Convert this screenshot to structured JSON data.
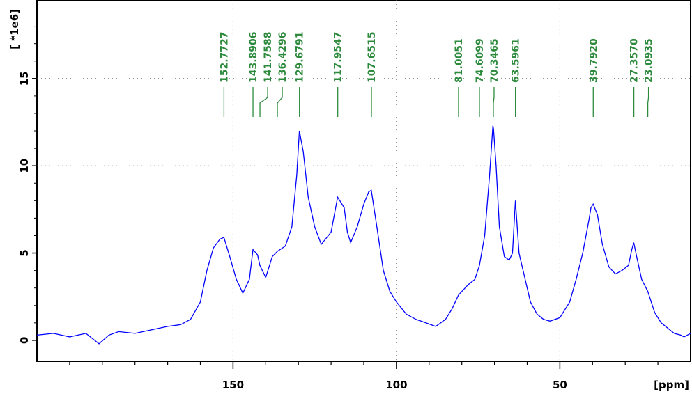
{
  "chart_data": {
    "type": "line",
    "title": "",
    "xlabel": "[ppm]",
    "ylabel": "[ *1e6]",
    "xlim": [
      210,
      10
    ],
    "ylim": [
      -1.2,
      19.5
    ],
    "x_ticks": [
      {
        "value": 150,
        "label": "150"
      },
      {
        "value": 100,
        "label": "100"
      },
      {
        "value": 50,
        "label": "50"
      }
    ],
    "x_minor_ticks": [
      200,
      190,
      180,
      170,
      160,
      140,
      130,
      120,
      110,
      90,
      80,
      70,
      60,
      40,
      30,
      20
    ],
    "y_ticks": [
      {
        "value": 0,
        "label": "0"
      },
      {
        "value": 5,
        "label": "5"
      },
      {
        "value": 10,
        "label": "10"
      },
      {
        "value": 15,
        "label": "15"
      }
    ],
    "grid": true,
    "line_color": "#0000ff",
    "peak_label_color": "#2e8b3e",
    "series": [
      {
        "x": [
          210,
          205,
          200,
          195,
          191,
          188,
          185,
          180,
          175,
          170,
          166,
          163,
          160,
          158,
          156,
          154,
          152.8,
          151,
          149,
          147,
          145,
          143.9,
          142.5,
          141.8,
          140,
          138,
          136.4,
          134,
          132,
          130.5,
          129.7,
          128.5,
          127,
          125,
          123,
          120,
          118,
          116,
          115,
          114,
          112,
          110,
          108.5,
          107.7,
          106,
          104,
          102,
          100,
          97,
          94,
          91,
          88,
          85,
          83,
          81,
          78,
          76,
          74.6,
          73,
          71.5,
          70.5,
          70.3,
          69.5,
          68.5,
          67,
          65.5,
          64.5,
          63.6,
          62.5,
          61,
          59,
          57,
          55,
          53,
          50,
          47,
          45,
          43,
          41,
          40.5,
          39.8,
          38.5,
          37,
          35,
          33,
          31,
          29,
          28,
          27.4,
          26.5,
          25,
          23.1,
          21,
          19,
          17,
          15,
          13,
          12,
          10
        ],
        "y": [
          0.3,
          0.4,
          0.2,
          0.4,
          -0.2,
          0.3,
          0.5,
          0.4,
          0.6,
          0.8,
          0.9,
          1.2,
          2.2,
          4.0,
          5.3,
          5.8,
          5.9,
          4.8,
          3.5,
          2.7,
          3.5,
          5.2,
          4.9,
          4.3,
          3.6,
          4.8,
          5.1,
          5.4,
          6.5,
          9.5,
          12.0,
          10.8,
          8.2,
          6.5,
          5.5,
          6.2,
          8.2,
          7.6,
          6.2,
          5.6,
          6.5,
          7.8,
          8.5,
          8.6,
          6.5,
          4.0,
          2.8,
          2.2,
          1.5,
          1.2,
          1.0,
          0.8,
          1.2,
          1.8,
          2.6,
          3.2,
          3.5,
          4.3,
          6.0,
          9.5,
          12.3,
          12.1,
          10.0,
          6.5,
          4.8,
          4.6,
          5.0,
          8.0,
          5.0,
          3.8,
          2.2,
          1.5,
          1.2,
          1.1,
          1.3,
          2.2,
          3.5,
          5.0,
          7.0,
          7.6,
          7.8,
          7.2,
          5.5,
          4.2,
          3.8,
          4.0,
          4.3,
          5.2,
          5.6,
          4.8,
          3.5,
          2.8,
          1.6,
          1.0,
          0.7,
          0.4,
          0.3,
          0.2,
          0.4
        ]
      }
    ],
    "peaks": [
      {
        "x": 152.7727,
        "label": "152.7727"
      },
      {
        "x": 143.8906,
        "label": "143.8906"
      },
      {
        "x": 141.7588,
        "label": "141.7588"
      },
      {
        "x": 136.4296,
        "label": "136.4296"
      },
      {
        "x": 129.6791,
        "label": "129.6791"
      },
      {
        "x": 117.9547,
        "label": "117.9547"
      },
      {
        "x": 107.6515,
        "label": "107.6515"
      },
      {
        "x": 81.0051,
        "label": "81.0051"
      },
      {
        "x": 74.6099,
        "label": "74.6099"
      },
      {
        "x": 70.3465,
        "label": "70.3465"
      },
      {
        "x": 63.5961,
        "label": "63.5961"
      },
      {
        "x": 39.792,
        "label": "39.7920"
      },
      {
        "x": 27.357,
        "label": "27.3570"
      },
      {
        "x": 23.0935,
        "label": "23.0935"
      }
    ]
  }
}
